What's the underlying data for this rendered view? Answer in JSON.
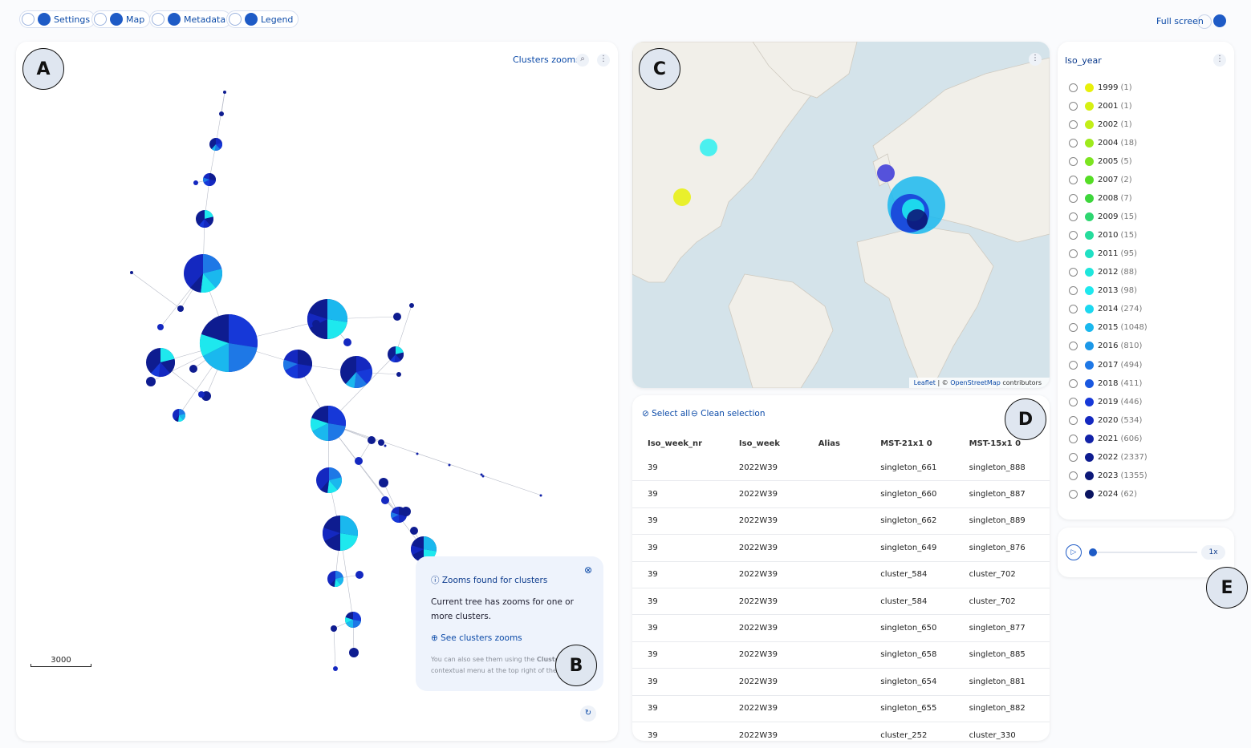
{
  "toolbar": {
    "items": [
      "Settings",
      "Map",
      "Metadata",
      "Legend"
    ],
    "fullscreen": "Full screen"
  },
  "tree": {
    "label": "A",
    "menu": "Clusters zooms",
    "scale": "3000"
  },
  "popup": {
    "label": "B",
    "title": "Zooms found for clusters",
    "body": "Current tree has zooms for one or more clusters.",
    "link": "See clusters zooms",
    "note": "You can also see them using the",
    "note_bold": "Clusters",
    "note_rest": "contextual menu at the top right of the co"
  },
  "map": {
    "label": "C",
    "attribution": [
      "Leaflet",
      "| ©",
      "OpenStreetMap",
      "contributors"
    ]
  },
  "table": {
    "label": "D",
    "actions": [
      "Select all",
      "Clean selection"
    ],
    "columns": [
      "Iso_week_nr",
      "Iso_week",
      "Alias",
      "MST-21x1 0",
      "MST-15x1 0"
    ],
    "rows": [
      [
        "39",
        "2022W39",
        "",
        "singleton_661",
        "singleton_888"
      ],
      [
        "39",
        "2022W39",
        "",
        "singleton_660",
        "singleton_887"
      ],
      [
        "39",
        "2022W39",
        "",
        "singleton_662",
        "singleton_889"
      ],
      [
        "39",
        "2022W39",
        "",
        "singleton_649",
        "singleton_876"
      ],
      [
        "39",
        "2022W39",
        "",
        "cluster_584",
        "cluster_702"
      ],
      [
        "39",
        "2022W39",
        "",
        "cluster_584",
        "cluster_702"
      ],
      [
        "39",
        "2022W39",
        "",
        "singleton_650",
        "singleton_877"
      ],
      [
        "39",
        "2022W39",
        "",
        "singleton_658",
        "singleton_885"
      ],
      [
        "39",
        "2022W39",
        "",
        "singleton_654",
        "singleton_881"
      ],
      [
        "39",
        "2022W39",
        "",
        "singleton_655",
        "singleton_882"
      ],
      [
        "39",
        "2022W39",
        "",
        "cluster_252",
        "cluster_330"
      ]
    ]
  },
  "legend": {
    "title": "Iso_year",
    "items": [
      {
        "year": "1999",
        "count": "(1)",
        "color": "#e8f00a"
      },
      {
        "year": "2001",
        "count": "(1)",
        "color": "#d6f012"
      },
      {
        "year": "2002",
        "count": "(1)",
        "color": "#c2ee18"
      },
      {
        "year": "2004",
        "count": "(18)",
        "color": "#9eea1c"
      },
      {
        "year": "2005",
        "count": "(5)",
        "color": "#7ce420"
      },
      {
        "year": "2007",
        "count": "(2)",
        "color": "#55dd25"
      },
      {
        "year": "2008",
        "count": "(7)",
        "color": "#3ed63c"
      },
      {
        "year": "2009",
        "count": "(15)",
        "color": "#2ed670"
      },
      {
        "year": "2010",
        "count": "(15)",
        "color": "#25dc9c"
      },
      {
        "year": "2011",
        "count": "(95)",
        "color": "#20e0c4"
      },
      {
        "year": "2012",
        "count": "(88)",
        "color": "#1ee6dc"
      },
      {
        "year": "2013",
        "count": "(98)",
        "color": "#1ee8ee"
      },
      {
        "year": "2014",
        "count": "(274)",
        "color": "#1cd8f0"
      },
      {
        "year": "2015",
        "count": "(1048)",
        "color": "#1ab8ee"
      },
      {
        "year": "2016",
        "count": "(810)",
        "color": "#1c98e8"
      },
      {
        "year": "2017",
        "count": "(494)",
        "color": "#1e78e6"
      },
      {
        "year": "2018",
        "count": "(411)",
        "color": "#1a58e0"
      },
      {
        "year": "2019",
        "count": "(446)",
        "color": "#1638d8"
      },
      {
        "year": "2020",
        "count": "(534)",
        "color": "#1428c0"
      },
      {
        "year": "2021",
        "count": "(606)",
        "color": "#1222a8"
      },
      {
        "year": "2022",
        "count": "(2337)",
        "color": "#0e1c90"
      },
      {
        "year": "2023",
        "count": "(1355)",
        "color": "#0c1878"
      },
      {
        "year": "2024",
        "count": "(62)",
        "color": "#0a1460"
      }
    ]
  },
  "player": {
    "label": "E",
    "speed": "1x"
  }
}
